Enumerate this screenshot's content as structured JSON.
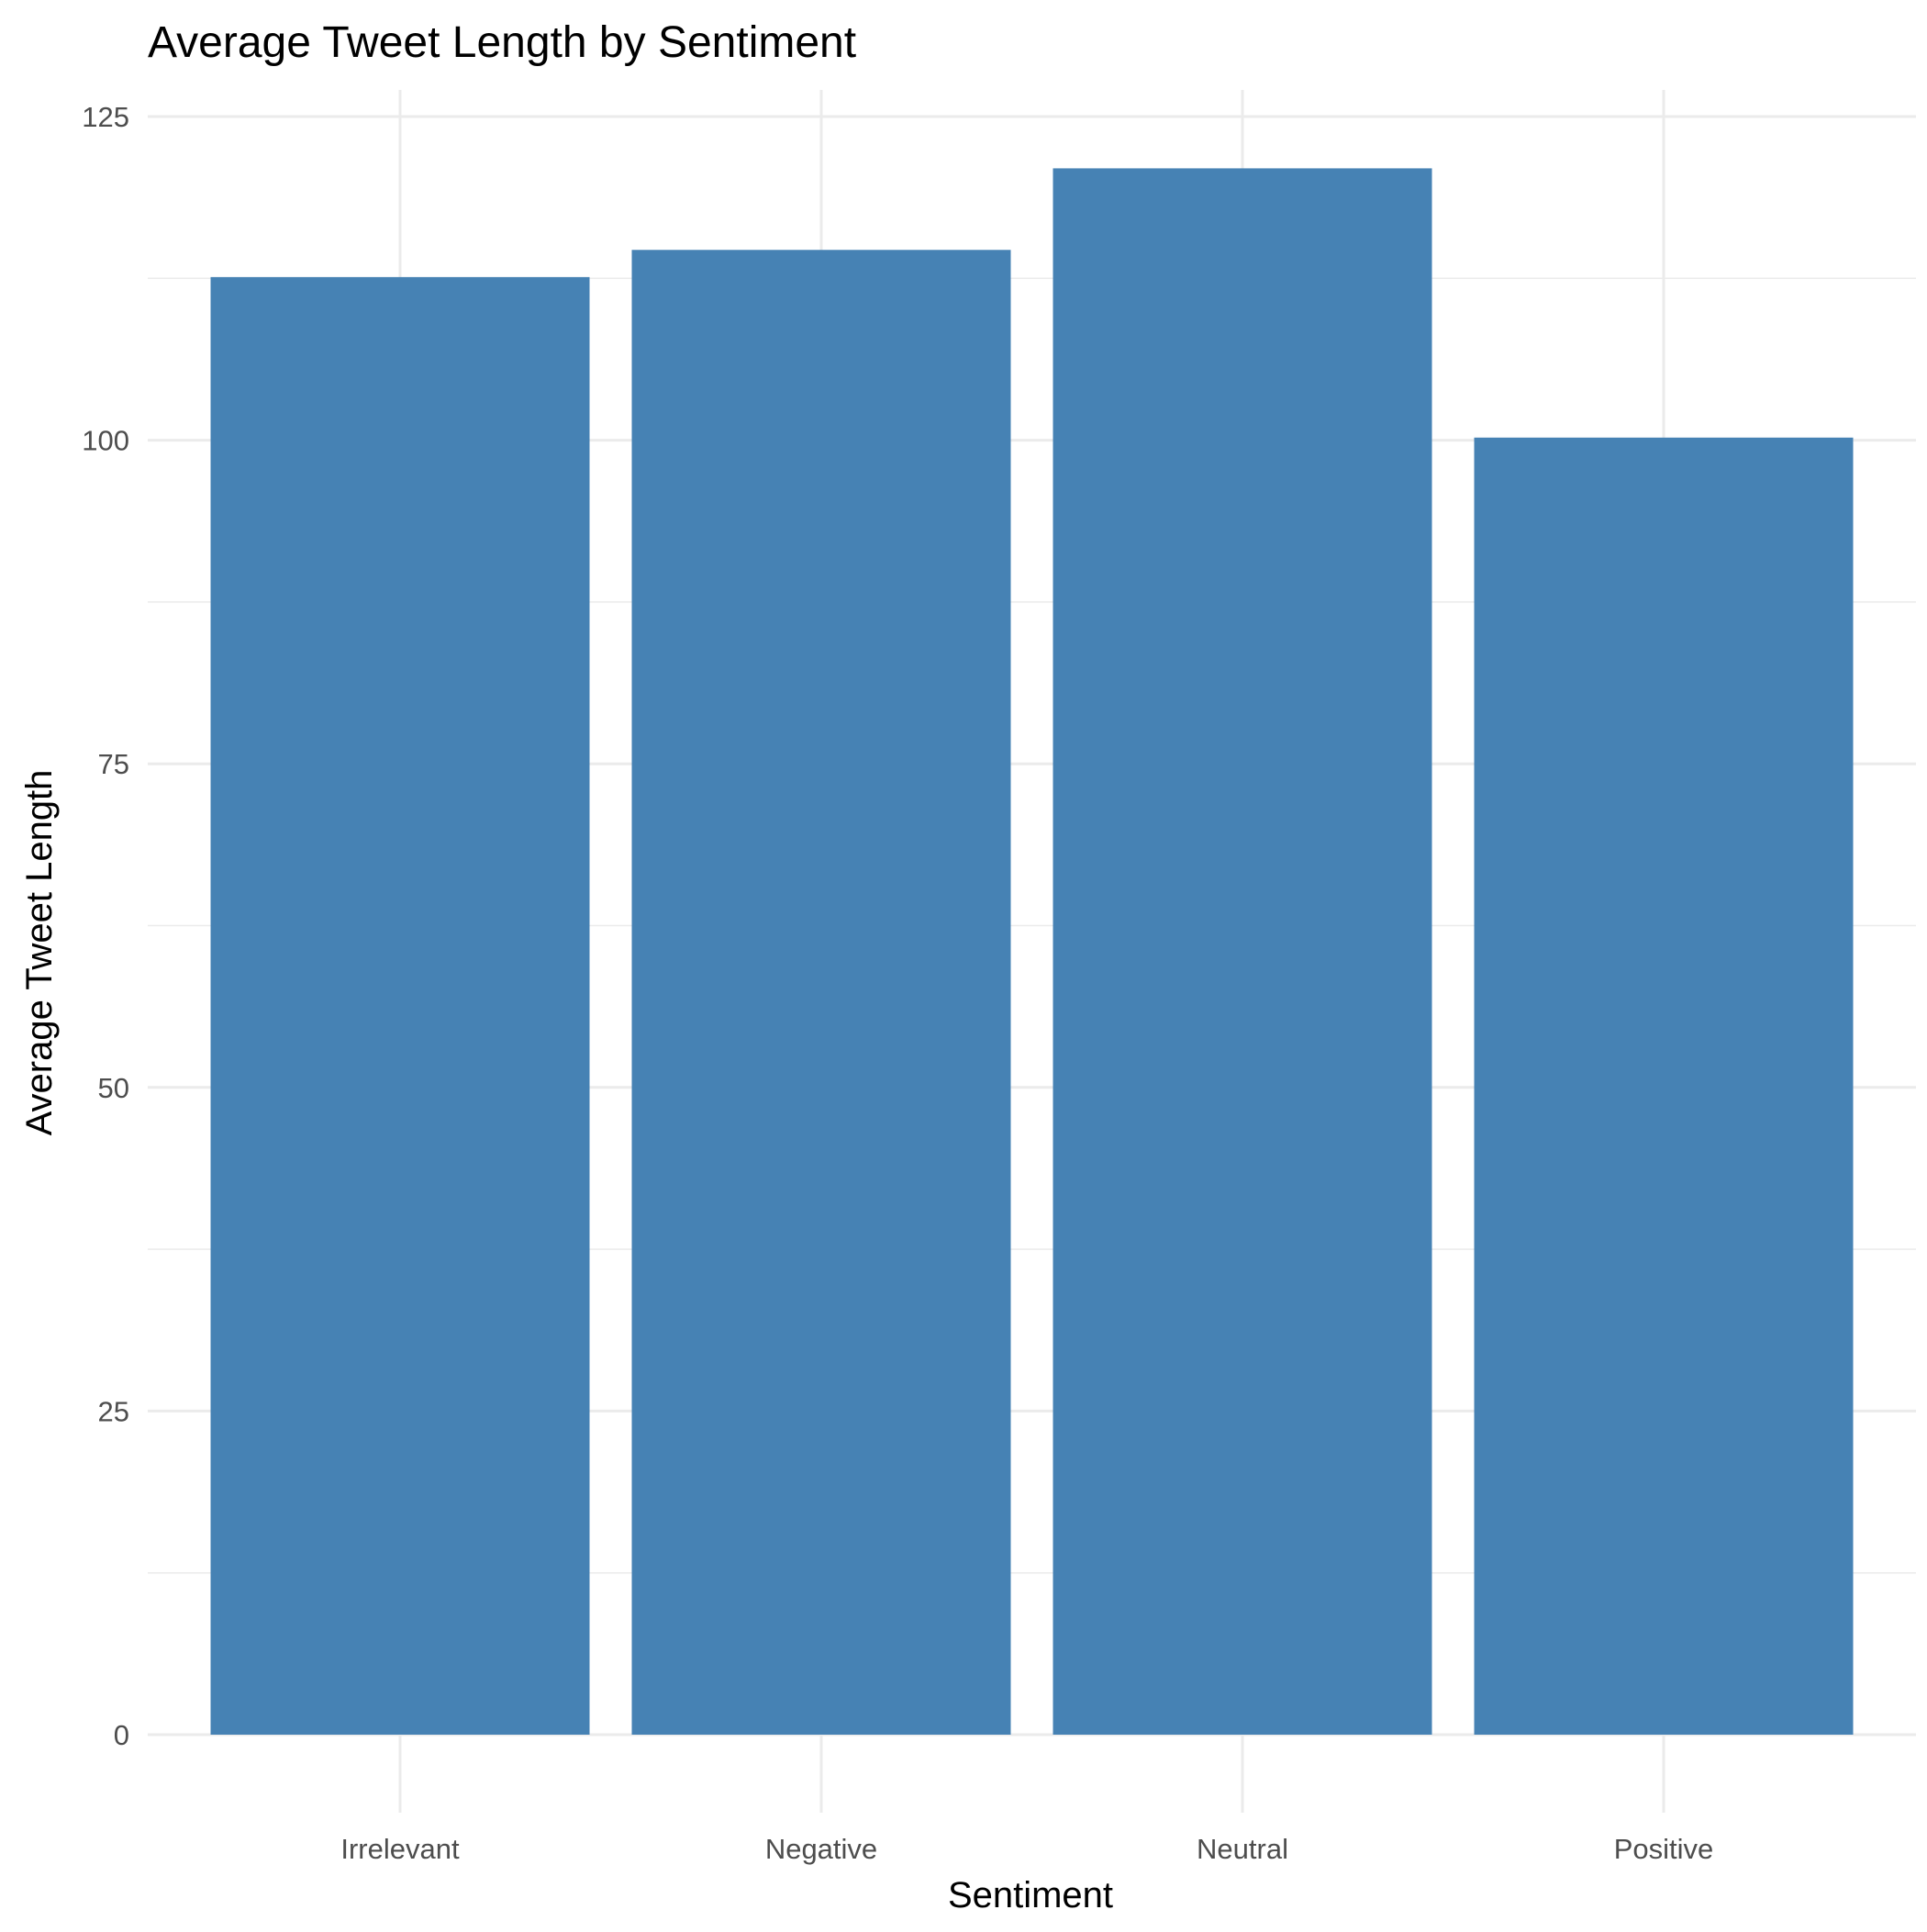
{
  "chart_data": {
    "type": "bar",
    "title": "Average Tweet Length by Sentiment",
    "xlabel": "Sentiment",
    "ylabel": "Average Tweet Length",
    "categories": [
      "Irrelevant",
      "Negative",
      "Neutral",
      "Positive"
    ],
    "values": [
      112.6,
      114.7,
      121.0,
      100.2
    ],
    "ylim": [
      0,
      127
    ],
    "yticks": [
      0,
      25,
      50,
      75,
      100,
      125
    ],
    "ytick_labels": [
      "0",
      "25",
      "50",
      "75",
      "100",
      "125"
    ],
    "grid": true,
    "legend": "none",
    "bar_color": "#4682b4"
  }
}
